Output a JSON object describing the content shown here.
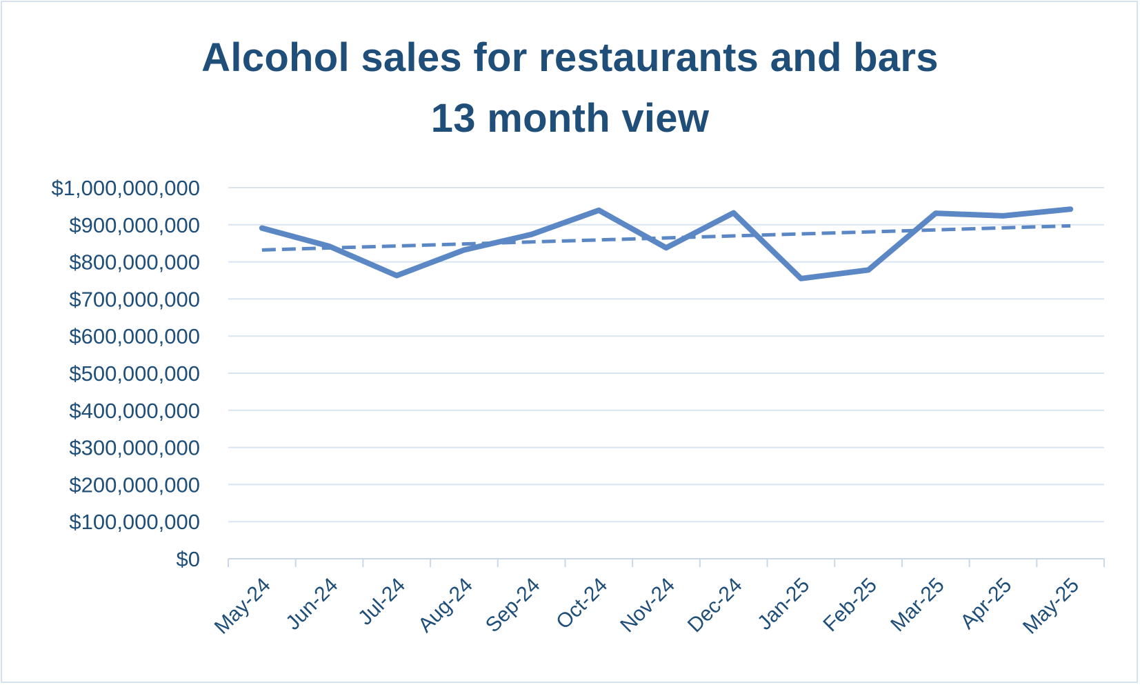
{
  "chart_data": {
    "type": "line",
    "title_lines": [
      "Alcohol sales for restaurants and bars",
      "13 month view"
    ],
    "xlabel": "",
    "ylabel": "",
    "categories": [
      "May-24",
      "Jun-24",
      "Jul-24",
      "Aug-24",
      "Sep-24",
      "Oct-24",
      "Nov-24",
      "Dec-24",
      "Jan-25",
      "Feb-25",
      "Mar-25",
      "Apr-25",
      "May-25"
    ],
    "series": [
      {
        "values": [
          891000000,
          842000000,
          763000000,
          832000000,
          874000000,
          939000000,
          838000000,
          932000000,
          755000000,
          778000000,
          931000000,
          924000000,
          942000000
        ],
        "color": "#5b87c5",
        "style": "solid"
      }
    ],
    "trendline": {
      "type": "linear",
      "start": 832000000,
      "end": 897000000,
      "color": "#5b87c5",
      "style": "dashed"
    },
    "ylim": [
      0,
      1000000000
    ],
    "yticks": [
      "$0",
      "$100,000,000",
      "$200,000,000",
      "$300,000,000",
      "$400,000,000",
      "$500,000,000",
      "$600,000,000",
      "$700,000,000",
      "$800,000,000",
      "$900,000,000",
      "$1,000,000,000"
    ],
    "grid": true,
    "legend": "none",
    "colors": {
      "line": "#5b87c5",
      "text": "#1f4e79",
      "grid": "#d9e4f1",
      "axis": "#c9d7e8"
    }
  }
}
